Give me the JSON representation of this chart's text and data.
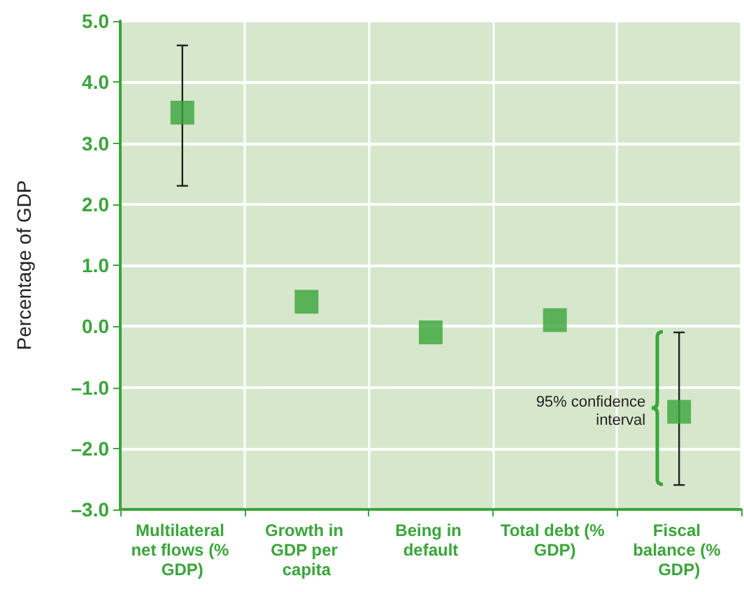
{
  "chart_data": {
    "type": "scatter",
    "ylabel": "Percentage of GDP",
    "categories": [
      "Multilateral net flows (% GDP)",
      "Growth in GDP per capita",
      "Being in default",
      "Total debt (% GDP)",
      "Fiscal balance (% GDP)"
    ],
    "series": [
      {
        "color": "#3aa53a",
        "values": [
          3.5,
          0.4,
          -0.1,
          0.1,
          -1.4
        ],
        "errors": [
          [
            2.3,
            4.6
          ],
          null,
          null,
          null,
          [
            -2.6,
            -0.1
          ]
        ]
      }
    ],
    "ylim": [
      -3,
      5
    ],
    "yticks": [
      {
        "value": -3,
        "label": "–3.0"
      },
      {
        "value": -2,
        "label": "–2.0"
      },
      {
        "value": -1,
        "label": "–1.0"
      },
      {
        "value": 0,
        "label": "0.0"
      },
      {
        "value": 1,
        "label": "1.0"
      },
      {
        "value": 2,
        "label": "2.0"
      },
      {
        "value": 3,
        "label": "3.0"
      },
      {
        "value": 4,
        "label": "4.0"
      },
      {
        "value": 5,
        "label": "5.0"
      }
    ],
    "grid": true,
    "marker": "square",
    "annotations": [
      {
        "text": "95% confidence interval",
        "x": "Fiscal balance (% GDP)",
        "y": -1.4
      }
    ]
  }
}
